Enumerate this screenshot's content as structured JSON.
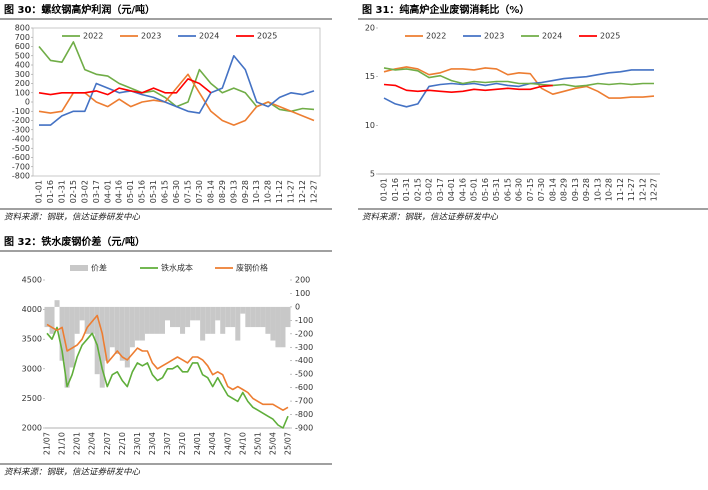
{
  "chart_data": [
    {
      "type": "line",
      "title": "图 30：螺纹钢高炉利润（元/吨）",
      "source": "资料来源：钢联，信达证券研发中心",
      "categories": [
        "01-01",
        "01-16",
        "01-31",
        "02-15",
        "03-02",
        "03-17",
        "04-01",
        "04-16",
        "05-01",
        "05-16",
        "05-31",
        "06-15",
        "06-30",
        "07-15",
        "07-30",
        "08-14",
        "08-29",
        "09-13",
        "09-28",
        "10-13",
        "10-28",
        "11-12",
        "11-27",
        "12-12",
        "12-27"
      ],
      "ylim": [
        -800,
        800
      ],
      "yticks": [
        -800,
        -700,
        -600,
        -500,
        -400,
        -300,
        -200,
        -100,
        0,
        100,
        200,
        300,
        400,
        500,
        600,
        700,
        800
      ],
      "grid": false,
      "series": [
        {
          "name": "2022",
          "color": "#70ad47",
          "values": [
            600,
            450,
            430,
            650,
            350,
            300,
            280,
            200,
            150,
            100,
            120,
            50,
            -50,
            0,
            350,
            200,
            100,
            150,
            100,
            -50,
            0,
            -80,
            -100,
            -70,
            -80
          ]
        },
        {
          "name": "2023",
          "color": "#ed7d31",
          "values": [
            -100,
            -120,
            -100,
            100,
            100,
            0,
            -50,
            30,
            -50,
            0,
            20,
            0,
            150,
            300,
            100,
            -100,
            -200,
            -250,
            -200,
            -50,
            0,
            -50,
            -100,
            -150,
            -200
          ]
        },
        {
          "name": "2024",
          "color": "#4472c4",
          "values": [
            -250,
            -250,
            -150,
            -100,
            -100,
            200,
            150,
            100,
            120,
            80,
            50,
            0,
            -50,
            -100,
            -120,
            100,
            150,
            500,
            350,
            0,
            -50,
            50,
            100,
            80,
            120
          ]
        },
        {
          "name": "2025",
          "color": "#ff0000",
          "values": [
            100,
            80,
            100,
            100,
            100,
            120,
            80,
            150,
            120,
            100,
            150,
            100,
            100,
            250,
            200,
            100,
            null,
            null,
            null,
            null,
            null,
            null,
            null,
            null,
            null
          ]
        }
      ]
    },
    {
      "type": "line",
      "title": "图 31：纯高炉企业废钢消耗比（%）",
      "source": "资料来源：钢联，信达证券研发中心",
      "categories": [
        "01-01",
        "01-16",
        "01-31",
        "02-15",
        "03-02",
        "03-17",
        "04-01",
        "04-16",
        "05-01",
        "05-16",
        "05-31",
        "06-15",
        "06-30",
        "07-15",
        "07-30",
        "08-14",
        "08-29",
        "09-13",
        "09-28",
        "10-13",
        "10-28",
        "11-12",
        "11-27",
        "12-12",
        "12-27"
      ],
      "ylim": [
        5,
        20
      ],
      "yticks": [
        5,
        10,
        15,
        20
      ],
      "grid": false,
      "series": [
        {
          "name": "2022",
          "color": "#ed7d31",
          "values": [
            15.5,
            15.8,
            16,
            15.8,
            15.2,
            15.4,
            15.8,
            15.8,
            15.7,
            15.9,
            15.8,
            15.2,
            15.4,
            15.3,
            13.8,
            13.2,
            13.5,
            13.8,
            14,
            13.5,
            12.8,
            12.8,
            12.9,
            12.9,
            13
          ]
        },
        {
          "name": "2023",
          "color": "#4472c4",
          "values": [
            12.8,
            12.2,
            11.9,
            12.2,
            14,
            14.2,
            14.3,
            14.2,
            14.3,
            14.1,
            14.3,
            14.1,
            14,
            14.3,
            14.4,
            14.6,
            14.8,
            14.9,
            15,
            15.2,
            15.4,
            15.5,
            15.7,
            15.7,
            15.7
          ]
        },
        {
          "name": "2024",
          "color": "#70ad47",
          "values": [
            15.9,
            15.7,
            15.8,
            15.6,
            14.9,
            15.1,
            14.6,
            14.3,
            14.5,
            14.4,
            14.5,
            14.5,
            14.3,
            14.3,
            14.2,
            14.1,
            14.2,
            14,
            14.1,
            14.3,
            14.2,
            14.3,
            14.2,
            14.3,
            14.3
          ]
        },
        {
          "name": "2025",
          "color": "#ff0000",
          "values": [
            14.2,
            14.1,
            13.6,
            13.5,
            13.6,
            13.5,
            13.4,
            13.5,
            13.7,
            13.6,
            13.7,
            13.8,
            13.7,
            13.7,
            14,
            14.1,
            null,
            null,
            null,
            null,
            null,
            null,
            null,
            null,
            null
          ]
        }
      ]
    },
    {
      "type": "combo",
      "title": "图 32：铁水废钢价差（元/吨）",
      "source": "资料来源：钢联，信达证券研发中心",
      "categories": [
        "21/07",
        null,
        null,
        "21/10",
        null,
        null,
        "22/01",
        null,
        null,
        "22/04",
        null,
        null,
        "22/07",
        null,
        null,
        "22/10",
        null,
        null,
        "23/01",
        null,
        null,
        "23/04",
        null,
        null,
        "23/07",
        null,
        null,
        "23/10",
        null,
        null,
        "24/01",
        null,
        null,
        "24/04",
        null,
        null,
        "24/07",
        null,
        null,
        "24/10",
        null,
        null,
        "25/01",
        null,
        null,
        "25/04",
        null,
        null,
        "25/07"
      ],
      "ylim": [
        2000,
        4500
      ],
      "yticks": [
        2000,
        2500,
        3000,
        3500,
        4000,
        4500
      ],
      "y2lim": [
        -900,
        200
      ],
      "y2ticks": [
        -900,
        -800,
        -700,
        -600,
        -500,
        -400,
        -300,
        -200,
        -100,
        0,
        100,
        200
      ],
      "grid": false,
      "series": [
        {
          "name": "价差",
          "type": "bar",
          "axis": "y2",
          "color": "#c8c8c8",
          "values": [
            -150,
            -200,
            50,
            -400,
            -600,
            -450,
            -200,
            -100,
            -200,
            -200,
            -500,
            -600,
            -400,
            -300,
            -350,
            -400,
            -450,
            -300,
            -250,
            -250,
            -200,
            -200,
            -200,
            -200,
            -100,
            -150,
            -150,
            -200,
            -150,
            -100,
            -100,
            -250,
            -200,
            -200,
            -100,
            -200,
            -150,
            -150,
            -250,
            -50,
            -150,
            -150,
            -150,
            -150,
            -200,
            -250,
            -300,
            -300,
            -150
          ]
        },
        {
          "name": "铁水成本",
          "type": "line",
          "color": "#5fae3a",
          "values": [
            3600,
            3500,
            3700,
            3300,
            2700,
            2900,
            3200,
            3400,
            3500,
            3600,
            3400,
            3000,
            2700,
            2900,
            2950,
            2800,
            2700,
            2950,
            3100,
            3050,
            3100,
            2900,
            2800,
            2850,
            3000,
            3000,
            3050,
            2950,
            2950,
            3100,
            3100,
            2900,
            2850,
            2700,
            2850,
            2700,
            2550,
            2500,
            2450,
            2600,
            2450,
            2350,
            2300,
            2250,
            2200,
            2150,
            2050,
            2000,
            2200
          ]
        },
        {
          "name": "废钢价格",
          "type": "line",
          "color": "#ed7d31",
          "values": [
            3750,
            3700,
            3650,
            3700,
            3300,
            3350,
            3400,
            3500,
            3700,
            3800,
            3900,
            3600,
            3100,
            3200,
            3300,
            3200,
            3150,
            3250,
            3350,
            3300,
            3300,
            3100,
            3000,
            3050,
            3100,
            3150,
            3200,
            3150,
            3100,
            3200,
            3200,
            3150,
            3050,
            2900,
            2950,
            2900,
            2700,
            2650,
            2700,
            2650,
            2600,
            2500,
            2450,
            2400,
            2400,
            2400,
            2350,
            2300,
            2350
          ]
        }
      ]
    }
  ]
}
